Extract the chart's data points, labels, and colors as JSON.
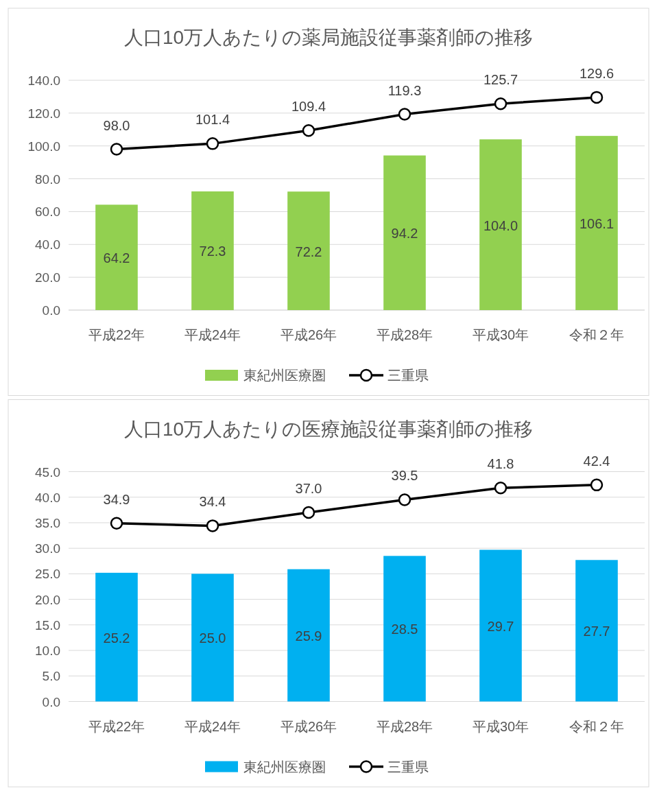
{
  "chart_data": [
    {
      "type": "bar",
      "title": "人口10万人あたりの薬局施設従事薬剤師の推移",
      "categories": [
        "平成22年",
        "平成24年",
        "平成26年",
        "平成28年",
        "平成30年",
        "令和２年"
      ],
      "ylim": [
        0,
        140
      ],
      "yticks": [
        {
          "value": 0,
          "label": "0.0"
        },
        {
          "value": 20,
          "label": "20.0"
        },
        {
          "value": 40,
          "label": "40.0"
        },
        {
          "value": 60,
          "label": "60.0"
        },
        {
          "value": 80,
          "label": "80.0"
        },
        {
          "value": 100,
          "label": "100.0"
        },
        {
          "value": 120,
          "label": "120.0"
        },
        {
          "value": 140,
          "label": "140.0"
        }
      ],
      "grid": "y",
      "legend": "bottom",
      "series": [
        {
          "name": "東紀州医療圏",
          "color": "#92d050",
          "values": [
            64.2,
            72.3,
            72.2,
            94.2,
            104.0,
            106.1
          ],
          "value_labels": [
            "64.2",
            "72.3",
            "72.2",
            "94.2",
            "104.0",
            "106.1"
          ]
        },
        {
          "name": "三重県",
          "type": "line",
          "color": "#000000",
          "marker": "circle",
          "values": [
            98.0,
            101.4,
            109.4,
            119.3,
            125.7,
            129.6
          ],
          "value_labels": [
            "98.0",
            "101.4",
            "109.4",
            "119.3",
            "125.7",
            "129.6"
          ]
        }
      ]
    },
    {
      "type": "bar",
      "title": "人口10万人あたりの医療施設従事薬剤師の推移",
      "categories": [
        "平成22年",
        "平成24年",
        "平成26年",
        "平成28年",
        "平成30年",
        "令和２年"
      ],
      "ylim": [
        0,
        45
      ],
      "yticks": [
        {
          "value": 0,
          "label": "0.0"
        },
        {
          "value": 5,
          "label": "5.0"
        },
        {
          "value": 10,
          "label": "10.0"
        },
        {
          "value": 15,
          "label": "15.0"
        },
        {
          "value": 20,
          "label": "20.0"
        },
        {
          "value": 25,
          "label": "25.0"
        },
        {
          "value": 30,
          "label": "30.0"
        },
        {
          "value": 35,
          "label": "35.0"
        },
        {
          "value": 40,
          "label": "40.0"
        },
        {
          "value": 45,
          "label": "45.0"
        }
      ],
      "grid": "y",
      "legend": "bottom",
      "series": [
        {
          "name": "東紀州医療圏",
          "color": "#00b0f0",
          "values": [
            25.2,
            25.0,
            25.9,
            28.5,
            29.7,
            27.7
          ],
          "value_labels": [
            "25.2",
            "25.0",
            "25.9",
            "28.5",
            "29.7",
            "27.7"
          ]
        },
        {
          "name": "三重県",
          "type": "line",
          "color": "#000000",
          "marker": "circle",
          "values": [
            34.9,
            34.4,
            37.0,
            39.5,
            41.8,
            42.4
          ],
          "value_labels": [
            "34.9",
            "34.4",
            "37.0",
            "39.5",
            "41.8",
            "42.4"
          ]
        }
      ]
    }
  ]
}
